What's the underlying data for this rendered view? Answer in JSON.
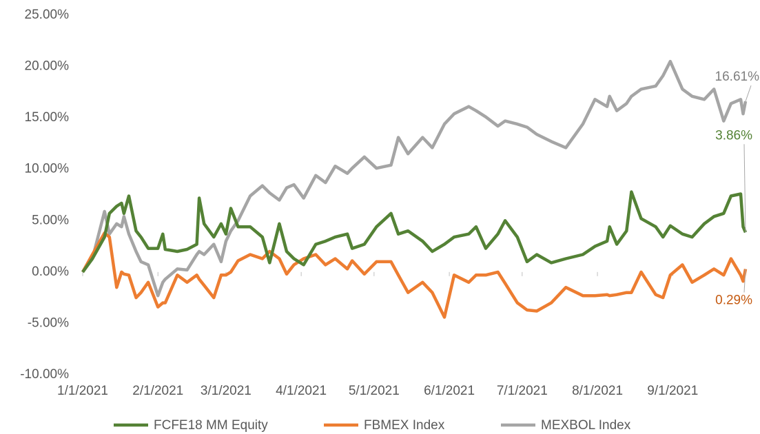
{
  "chart_data": {
    "type": "line",
    "x": [
      "1/1/2021",
      "1/5/2021",
      "1/10/2021",
      "1/12/2021",
      "1/15/2021",
      "1/17/2021",
      "1/18/2021",
      "1/20/2021",
      "1/23/2021",
      "1/25/2021",
      "1/28/2021",
      "2/1/2021",
      "2/3/2021",
      "2/4/2021",
      "2/9/2021",
      "2/13/2021",
      "2/17/2021",
      "2/18/2021",
      "2/20/2021",
      "2/24/2021",
      "2/27/2021",
      "3/1/2021",
      "3/3/2021",
      "3/6/2021",
      "3/11/2021",
      "3/16/2021",
      "3/19/2021",
      "3/23/2021",
      "3/26/2021",
      "3/29/2021",
      "4/2/2021",
      "4/7/2021",
      "4/11/2021",
      "4/15/2021",
      "4/20/2021",
      "4/22/2021",
      "4/27/2021",
      "5/2/2021",
      "5/8/2021",
      "5/11/2021",
      "5/15/2021",
      "5/21/2021",
      "5/25/2021",
      "5/30/2021",
      "6/3/2021",
      "6/9/2021",
      "6/12/2021",
      "6/16/2021",
      "6/21/2021",
      "6/24/2021",
      "6/29/2021",
      "7/3/2021",
      "7/7/2021",
      "7/13/2021",
      "7/19/2021",
      "7/26/2021",
      "7/31/2021",
      "8/5/2021",
      "8/6/2021",
      "8/9/2021",
      "8/13/2021",
      "8/15/2021",
      "8/19/2021",
      "8/25/2021",
      "8/28/2021",
      "8/31/2021",
      "9/5/2021",
      "9/9/2021",
      "9/14/2021",
      "9/18/2021",
      "9/22/2021",
      "9/25/2021",
      "9/29/2021",
      "9/30/2021",
      "10/1/2021"
    ],
    "series": [
      {
        "name": "FCFE18 MM Equity",
        "color": "#548235",
        "end_label": "3.86%",
        "values": [
          0,
          1.3,
          3.4,
          5.7,
          6.4,
          6.7,
          5.7,
          7.4,
          4.0,
          3.4,
          2.3,
          2.3,
          3.7,
          2.2,
          2.0,
          2.2,
          2.7,
          7.2,
          4.7,
          3.4,
          4.7,
          3.7,
          6.2,
          4.4,
          4.4,
          3.4,
          0.9,
          4.7,
          2.0,
          1.3,
          0.7,
          2.7,
          3.0,
          3.4,
          3.7,
          2.3,
          2.7,
          4.4,
          5.7,
          3.7,
          4.0,
          3.0,
          2.0,
          2.7,
          3.4,
          3.7,
          4.4,
          2.3,
          3.7,
          5.0,
          3.4,
          1.0,
          1.7,
          0.9,
          1.3,
          1.7,
          2.5,
          3.0,
          4.4,
          2.7,
          4.0,
          7.8,
          5.2,
          4.4,
          3.4,
          4.5,
          3.7,
          3.4,
          4.7,
          5.4,
          5.7,
          7.4,
          7.6,
          4.4,
          3.86
        ]
      },
      {
        "name": "FBMEX Index",
        "color": "#ed7d31",
        "end_label": "0.29%",
        "values": [
          0,
          1.7,
          3.8,
          3.4,
          -1.5,
          0,
          -0.2,
          -0.3,
          -2.5,
          -2.0,
          -1.0,
          -3.4,
          -3.0,
          -3.0,
          -0.3,
          -1.0,
          -0.3,
          -0.7,
          -1.3,
          -2.5,
          -0.3,
          -0.3,
          0,
          1.1,
          1.7,
          1.3,
          2.0,
          1.3,
          -0.2,
          0.7,
          1.3,
          1.7,
          0.7,
          1.3,
          0.3,
          1.1,
          -0.2,
          1.0,
          1.0,
          -0.3,
          -2.0,
          -1.0,
          -2.0,
          -4.4,
          -0.3,
          -1.0,
          -0.3,
          -0.3,
          0,
          -1.1,
          -3.0,
          -3.7,
          -3.8,
          -3.0,
          -1.5,
          -2.3,
          -2.3,
          -2.2,
          -2.3,
          -2.2,
          -2.0,
          -2.0,
          0,
          -2.2,
          -2.5,
          -0.3,
          0.7,
          -1.0,
          -0.3,
          0.3,
          -0.3,
          1.3,
          -0.3,
          -0.9,
          0.29
        ]
      },
      {
        "name": "MEXBOL Index",
        "color": "#a5a5a5",
        "end_label": "16.61%",
        "values": [
          0,
          1.3,
          5.9,
          3.7,
          4.7,
          4.4,
          5.4,
          3.7,
          2.0,
          1.0,
          0.7,
          -2.3,
          -1.0,
          -0.7,
          0.3,
          0.2,
          1.7,
          2.0,
          1.7,
          2.7,
          1.0,
          3.0,
          4.0,
          5.0,
          7.4,
          8.4,
          7.7,
          7.0,
          8.2,
          8.5,
          7.2,
          9.4,
          8.7,
          10.3,
          9.6,
          10.1,
          11.2,
          10.1,
          10.4,
          13.1,
          11.5,
          13.1,
          12.1,
          14.4,
          15.4,
          16.1,
          15.7,
          15.1,
          14.2,
          14.7,
          14.4,
          14.1,
          13.4,
          12.7,
          12.1,
          14.4,
          16.8,
          16.1,
          17.1,
          15.7,
          16.4,
          17.1,
          17.8,
          18.1,
          19.1,
          20.5,
          17.8,
          17.1,
          16.8,
          17.8,
          14.7,
          16.4,
          16.8,
          15.4,
          16.61
        ]
      }
    ],
    "xlim": [
      "1/1/2021",
      "10/1/2021"
    ],
    "xticks": [
      "1/1/2021",
      "2/1/2021",
      "3/1/2021",
      "4/1/2021",
      "5/1/2021",
      "6/1/2021",
      "7/1/2021",
      "8/1/2021",
      "9/1/2021"
    ],
    "ylim": [
      -10,
      25
    ],
    "yticks": [
      {
        "value": -10,
        "label": "-10.00%"
      },
      {
        "value": -5,
        "label": "-5.00%"
      },
      {
        "value": 0,
        "label": "0.00%"
      },
      {
        "value": 5,
        "label": "5.00%"
      },
      {
        "value": 10,
        "label": "10.00%"
      },
      {
        "value": 15,
        "label": "15.00%"
      },
      {
        "value": 20,
        "label": "20.00%"
      },
      {
        "value": 25,
        "label": "25.00%"
      }
    ],
    "grid": false,
    "legend": "bottom"
  }
}
